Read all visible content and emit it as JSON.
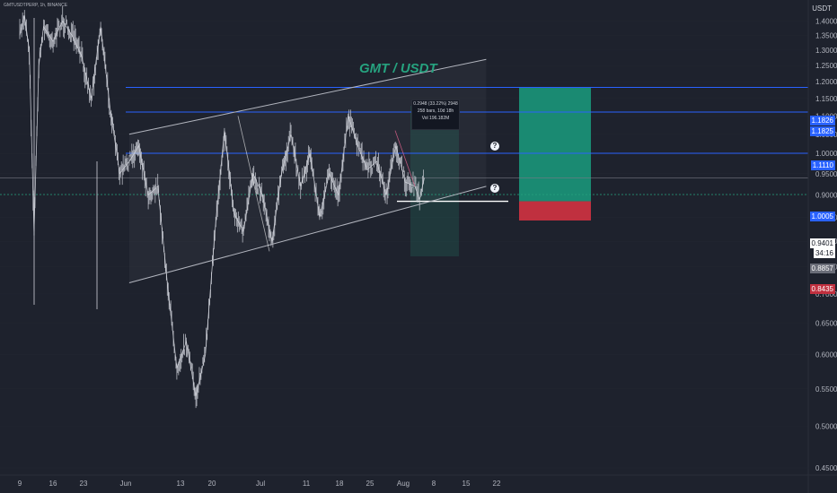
{
  "header": {
    "symbol": "GMTUSDTPERP, 1h, BINANCE",
    "currency": "USDT",
    "title": "GMT / USDT"
  },
  "measure_box": {
    "line1": "0.2948 (33.22%) 2948",
    "line2": "258 bars, 10d 18h",
    "line3": "Vol 196.182M"
  },
  "question_marks": [
    "?",
    "?"
  ],
  "price_tags": {
    "level1": "1.1826",
    "level1b": "1.1825",
    "level2": "1.1110",
    "level3": "1.0005",
    "current": "0.9401",
    "countdown": "34:16",
    "entry": "0.8857",
    "stop": "0.8435"
  },
  "colors": {
    "background": "#1e222d",
    "grid": "#2a2e39",
    "price_text": "#b2b5be",
    "candle": "#d1d4dc",
    "channel": "#b2b5be",
    "horizontal_level": "#2962ff",
    "target_zone": "#1a8a72",
    "stop_zone": "#c0303f",
    "title": "#26a27f"
  },
  "chart_data": {
    "type": "line",
    "symbol": "GMTUSDTPERP",
    "title": "GMT / USDT",
    "y_axis_label": "USDT",
    "y_scale": "log",
    "ylim": [
      0.45,
      1.45
    ],
    "y_ticks": [
      "1.4000",
      "1.3500",
      "1.3000",
      "1.2500",
      "1.2000",
      "1.1500",
      "1.1000",
      "1.0500",
      "1.0000",
      "0.9500",
      "0.9000",
      "0.8500",
      "0.8000",
      "0.7500",
      "0.7000",
      "0.6500",
      "0.6000",
      "0.5500",
      "0.5000",
      "0.4500"
    ],
    "x_ticks": [
      "9",
      "16",
      "23",
      "Jun",
      "13",
      "20",
      "Jul",
      "11",
      "18",
      "25",
      "Aug",
      "8",
      "15",
      "22"
    ],
    "series": [
      {
        "x": [
          "2022-05-09",
          "2022-05-10",
          "2022-05-11",
          "2022-05-12",
          "2022-05-13",
          "2022-05-14",
          "2022-05-16",
          "2022-05-18",
          "2022-05-20",
          "2022-05-22",
          "2022-05-24",
          "2022-05-26",
          "2022-05-28",
          "2022-05-30",
          "2022-06-01",
          "2022-06-03",
          "2022-06-05",
          "2022-06-07",
          "2022-06-09",
          "2022-06-11",
          "2022-06-13",
          "2022-06-15",
          "2022-06-17",
          "2022-06-19",
          "2022-06-21",
          "2022-06-23",
          "2022-06-25",
          "2022-06-27",
          "2022-06-29",
          "2022-07-01",
          "2022-07-03",
          "2022-07-05",
          "2022-07-07",
          "2022-07-09",
          "2022-07-11",
          "2022-07-13",
          "2022-07-15",
          "2022-07-17",
          "2022-07-19",
          "2022-07-21",
          "2022-07-23",
          "2022-07-25",
          "2022-07-27",
          "2022-07-29",
          "2022-07-31",
          "2022-08-01",
          "2022-08-02"
        ],
        "values": [
          1.35,
          1.42,
          1.3,
          0.82,
          1.25,
          1.38,
          1.33,
          1.4,
          1.35,
          1.28,
          1.15,
          1.38,
          1.12,
          0.95,
          0.98,
          1.02,
          0.9,
          0.92,
          0.72,
          0.58,
          0.62,
          0.54,
          0.6,
          0.82,
          1.06,
          0.86,
          0.82,
          0.95,
          0.9,
          0.8,
          0.95,
          1.05,
          0.92,
          1.0,
          0.85,
          0.95,
          0.9,
          1.1,
          1.02,
          0.96,
          0.98,
          0.9,
          1.02,
          0.93,
          0.92,
          0.89,
          0.94
        ]
      }
    ],
    "horizontal_levels": [
      1.1826,
      1.111,
      1.0005
    ],
    "channel": {
      "upper": [
        [
          "2022-06-01",
          1.05
        ],
        [
          "2022-08-15",
          1.27
        ]
      ],
      "lower": [
        [
          "2022-06-01",
          0.72
        ],
        [
          "2022-08-15",
          0.92
        ]
      ]
    },
    "position": {
      "entry": 0.8857,
      "target": 1.1826,
      "stop": 0.8435
    }
  }
}
